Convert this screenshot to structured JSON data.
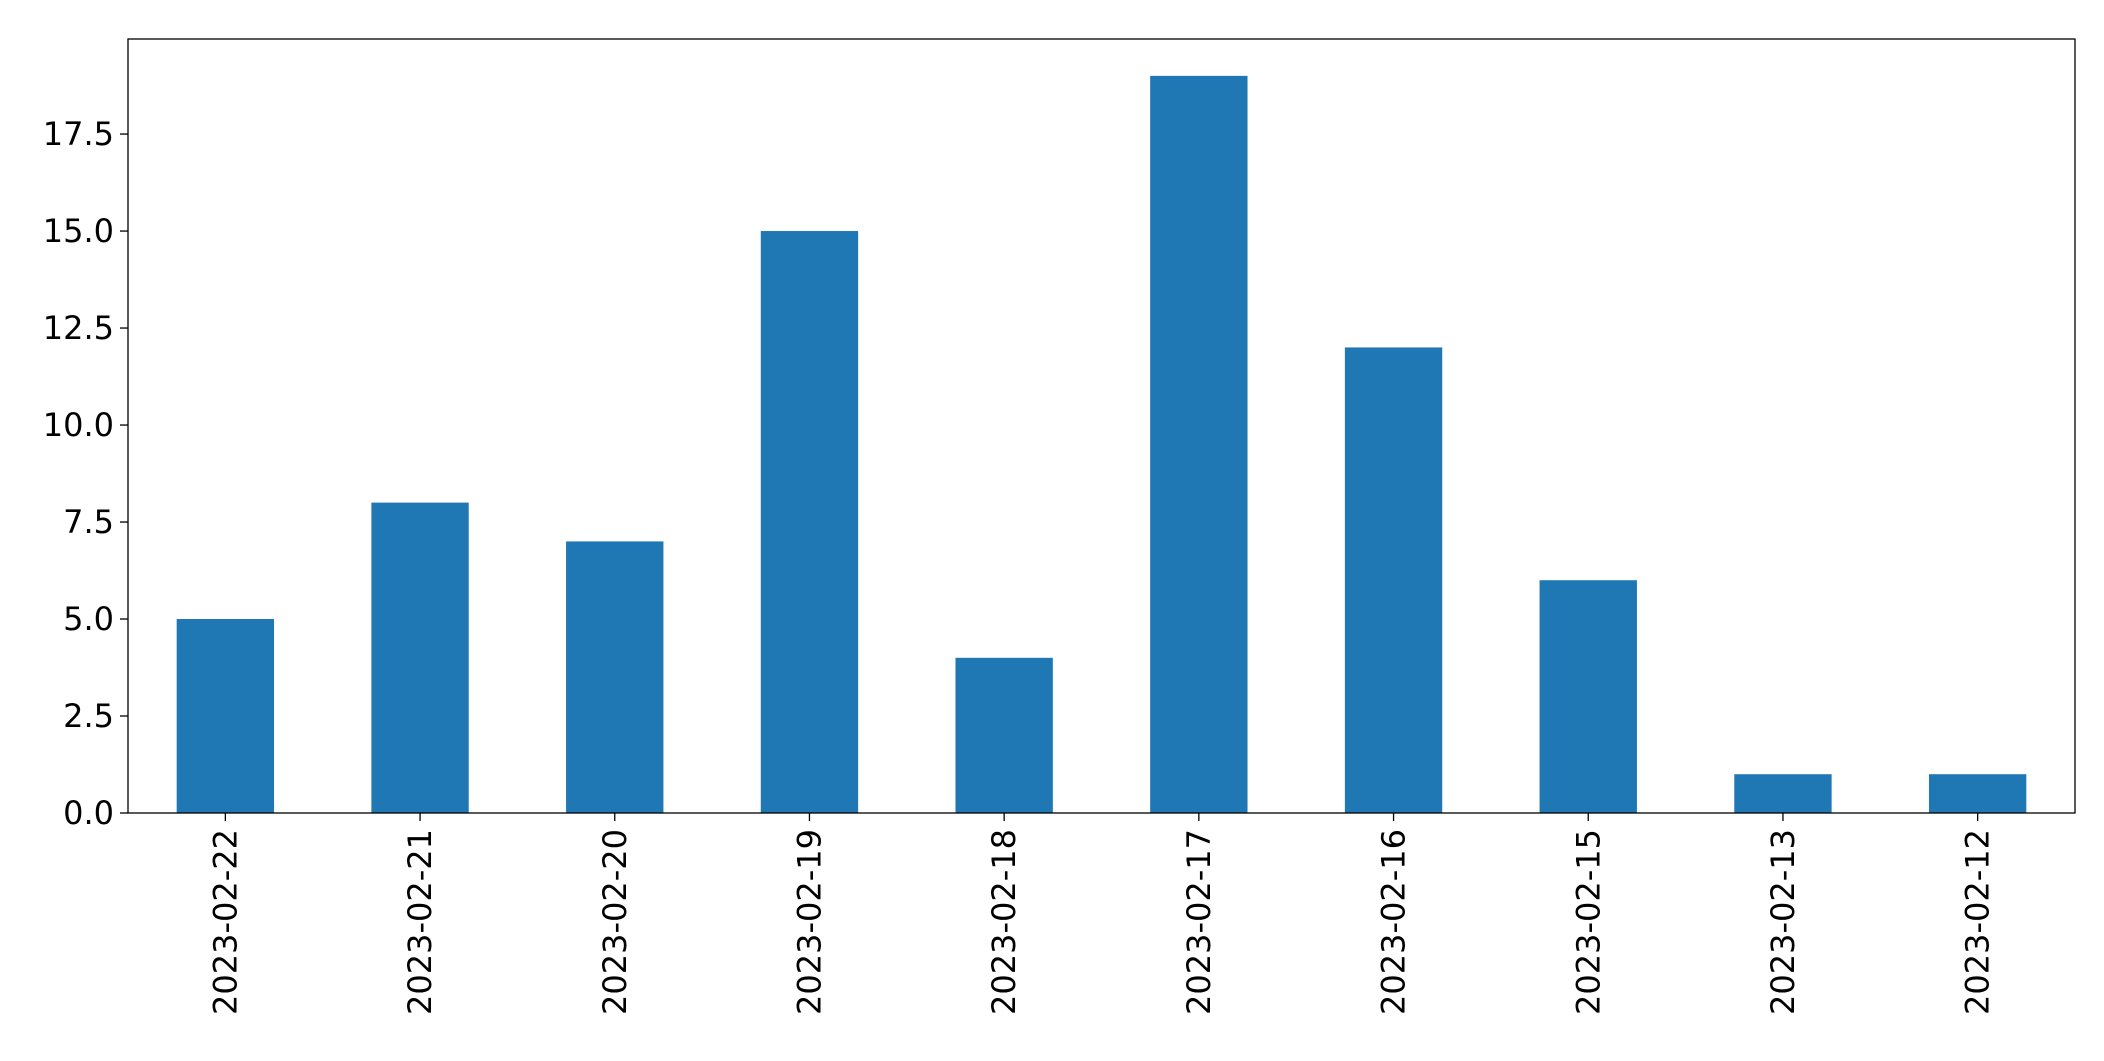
{
  "chart_data": {
    "type": "bar",
    "categories": [
      "2023-02-22",
      "2023-02-21",
      "2023-02-20",
      "2023-02-19",
      "2023-02-18",
      "2023-02-17",
      "2023-02-16",
      "2023-02-15",
      "2023-02-13",
      "2023-02-12"
    ],
    "values": [
      5,
      8,
      7,
      15,
      4,
      19,
      12,
      6,
      1,
      1
    ],
    "color": "#1f77b4",
    "ylim": [
      0,
      19.95
    ],
    "yticks": [
      {
        "value": 0,
        "label": "0.0"
      },
      2.5,
      {
        "value": 5,
        "label": "5.0"
      },
      7.5,
      {
        "value": 10,
        "label": "10.0"
      },
      12.5,
      {
        "value": 15,
        "label": "15.0"
      },
      17.5
    ]
  }
}
